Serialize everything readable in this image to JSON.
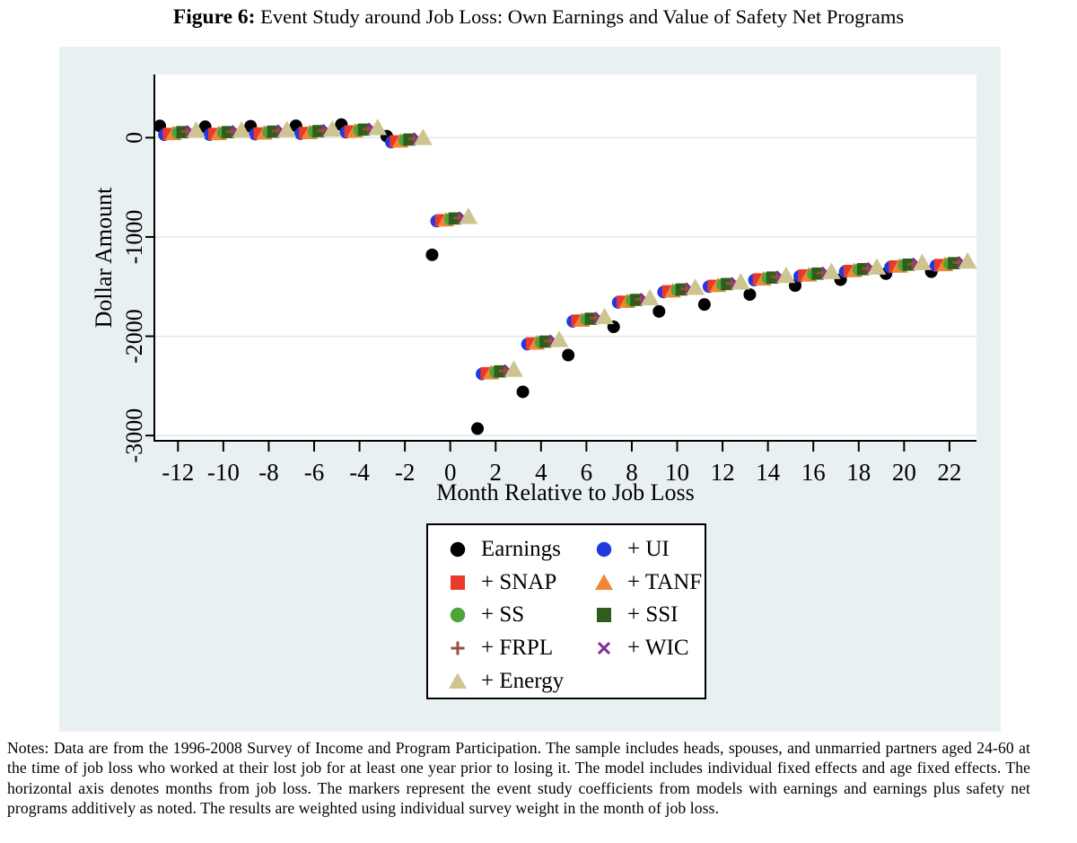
{
  "title": {
    "label": "Figure 6:",
    "text": " Event Study around Job Loss: Own Earnings and Value of Safety Net Programs"
  },
  "notes": "Notes: Data are from the 1996-2008 Survey of Income and Program Participation. The sample includes heads, spouses, and unmarried partners aged 24-60 at the time of job loss who worked at their lost job for at least one year prior to losing it. The model includes individual fixed effects and age fixed effects. The horizontal axis denotes months from job loss. The markers represent the event study coefficients from models with earnings and earnings plus safety net programs additively as noted. The results are weighted using individual survey weight in the month of job loss.",
  "colors": {
    "figure_background": "#E9F0F2",
    "plot_background": "#FFFFFF",
    "gridline": "#DFE9ED",
    "axis": "#000000"
  },
  "chart_data": {
    "type": "scatter",
    "title": "Event Study around Job Loss: Own Earnings and Value of Safety Net Programs",
    "xlabel": "Month Relative to Job Loss",
    "ylabel": "Dollar Amount",
    "x_tick_labels": [
      -12,
      -10,
      -8,
      -6,
      -4,
      -2,
      0,
      2,
      4,
      6,
      8,
      10,
      12,
      14,
      16,
      18,
      20,
      22
    ],
    "y_tick_labels": [
      0,
      -1000,
      -2000,
      -3000
    ],
    "xlim": [
      -13.04,
      23.19
    ],
    "ylim": [
      -3053,
      636
    ],
    "grid": "horizontal gridlines at y ticks, plot area white on light blue figure background",
    "legend_position": "boxed, centered below x-axis label, 2 columns",
    "months": [
      -12,
      -10,
      -8,
      -6,
      -4,
      -2,
      0,
      2,
      4,
      6,
      8,
      10,
      12,
      14,
      16,
      18,
      20,
      22
    ],
    "series_x_offset_start_months": -0.8,
    "series_x_offset_step_months": 0.2,
    "series": [
      {
        "name": "earnings",
        "label": "Earnings",
        "marker": "circle",
        "color": "#000000",
        "values": [
          118,
          110,
          115,
          120,
          132,
          15,
          -1180,
          -2930,
          -2560,
          -2190,
          -1905,
          -1750,
          -1680,
          -1580,
          -1490,
          -1430,
          -1370,
          -1350
        ]
      },
      {
        "name": "ui",
        "label": "+ UI",
        "marker": "circle",
        "color": "#2238E0",
        "values": [
          30,
          30,
          35,
          40,
          55,
          -45,
          -840,
          -2380,
          -2080,
          -1850,
          -1660,
          -1555,
          -1500,
          -1435,
          -1395,
          -1350,
          -1305,
          -1290
        ]
      },
      {
        "name": "snap",
        "label": "+ SNAP",
        "marker": "square",
        "color": "#E8392B",
        "values": [
          38,
          38,
          43,
          48,
          63,
          -37,
          -832,
          -2372,
          -2072,
          -1842,
          -1652,
          -1547,
          -1492,
          -1427,
          -1387,
          -1342,
          -1297,
          -1282
        ]
      },
      {
        "name": "tanf",
        "label": "+ TANF",
        "marker": "triangle",
        "color": "#F08636",
        "values": [
          44,
          44,
          49,
          54,
          69,
          -31,
          -826,
          -2366,
          -2066,
          -1836,
          -1646,
          -1541,
          -1486,
          -1421,
          -1381,
          -1336,
          -1291,
          -1276
        ]
      },
      {
        "name": "ss",
        "label": "+ SS",
        "marker": "circle",
        "color": "#4BA53A",
        "values": [
          50,
          50,
          55,
          60,
          75,
          -25,
          -820,
          -2360,
          -2060,
          -1830,
          -1640,
          -1535,
          -1480,
          -1415,
          -1375,
          -1330,
          -1285,
          -1270
        ]
      },
      {
        "name": "ssi",
        "label": "+ SSI",
        "marker": "square",
        "color": "#2F5E1C",
        "values": [
          56,
          56,
          61,
          66,
          81,
          -19,
          -814,
          -2354,
          -2054,
          -1824,
          -1634,
          -1529,
          -1474,
          -1409,
          -1369,
          -1324,
          -1279,
          -1264
        ]
      },
      {
        "name": "frpl",
        "label": "+ FRPL",
        "marker": "plus",
        "color": "#96503C",
        "values": [
          62,
          62,
          67,
          72,
          87,
          -13,
          -808,
          -2348,
          -2048,
          -1818,
          -1628,
          -1523,
          -1468,
          -1403,
          -1363,
          -1318,
          -1273,
          -1258
        ]
      },
      {
        "name": "wic",
        "label": "+ WIC",
        "marker": "x",
        "color": "#7E2C8E",
        "values": [
          68,
          68,
          73,
          78,
          93,
          -7,
          -802,
          -2342,
          -2042,
          -1812,
          -1622,
          -1517,
          -1462,
          -1397,
          -1357,
          -1312,
          -1267,
          -1252
        ]
      },
      {
        "name": "energy",
        "label": "+ Energy",
        "marker": "triangle",
        "color": "#CDC48F",
        "values": [
          78,
          78,
          83,
          88,
          103,
          3,
          -792,
          -2332,
          -2032,
          -1802,
          -1612,
          -1507,
          -1452,
          -1387,
          -1347,
          -1302,
          -1257,
          -1242
        ]
      }
    ]
  }
}
